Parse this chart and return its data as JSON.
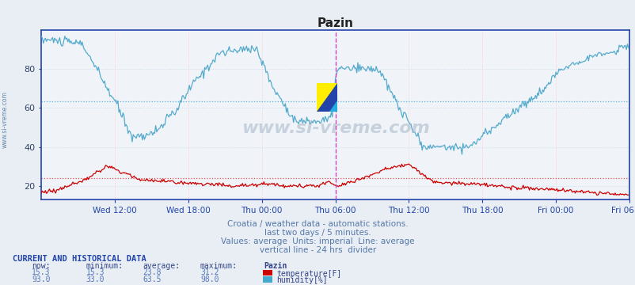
{
  "title": "Pazin",
  "background_color": "#e8eef4",
  "plot_bg_color": "#f0f4f8",
  "subtitle_lines": [
    "Croatia / weather data - automatic stations.",
    "last two days / 5 minutes.",
    "Values: average  Units: imperial  Line: average",
    "vertical line - 24 hrs  divider"
  ],
  "footer_title": "CURRENT AND HISTORICAL DATA",
  "footer_cols": [
    "now:",
    "minimum:",
    "average:",
    "maximum:",
    "Pazin"
  ],
  "footer_data": [
    {
      "now": "15.3",
      "min": "15.3",
      "avg": "23.8",
      "max": "31.2",
      "label": "temperature[F]",
      "color": "#cc0000"
    },
    {
      "now": "93.0",
      "min": "33.0",
      "avg": "63.5",
      "max": "98.0",
      "label": "humidity[%]",
      "color": "#44aacc"
    }
  ],
  "x_tick_labels": [
    "Wed 12:00",
    "Wed 18:00",
    "Thu 00:00",
    "Thu 06:00",
    "Thu 12:00",
    "Thu 18:00",
    "Fri 00:00",
    "Fri 06:00"
  ],
  "x_tick_positions": [
    72,
    144,
    216,
    288,
    360,
    432,
    504,
    576
  ],
  "y_ticks": [
    20,
    40,
    60,
    80
  ],
  "y_lim": [
    13,
    100
  ],
  "temp_avg": 23.8,
  "hum_avg": 63.5,
  "divider_x": 288,
  "total_points": 576,
  "watermark": "www.si-vreme.com",
  "temp_color": "#cc0000",
  "hum_color": "#55aacc",
  "avg_temp_color": "#dd4444",
  "avg_hum_color": "#44aadd",
  "divider_color": "#cc44cc",
  "grid_color_v": "#ffcccc",
  "grid_color_h": "#ccddee",
  "axis_color": "#2244aa",
  "title_color": "#222222",
  "watermark_color": "#aabbcc"
}
